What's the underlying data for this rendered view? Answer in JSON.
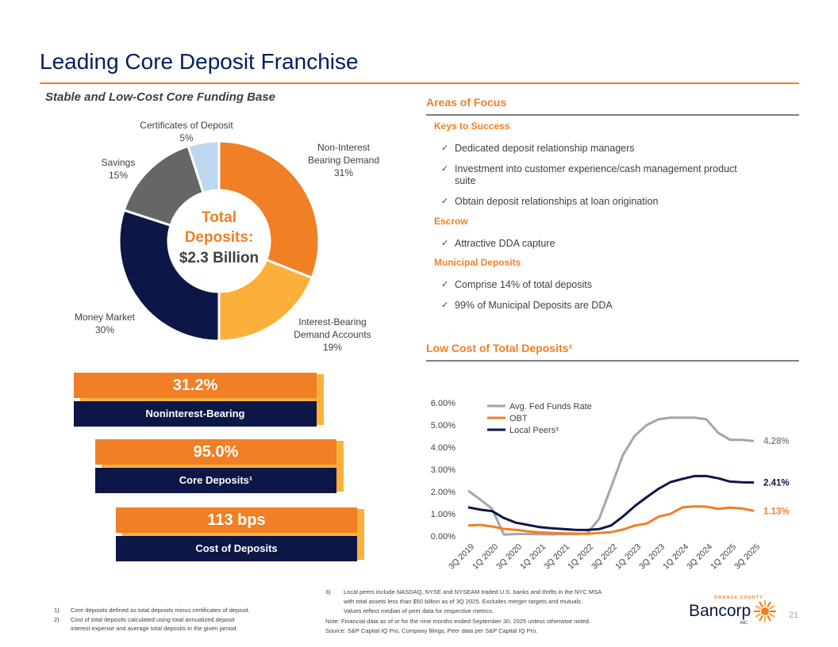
{
  "title": "Leading Core Deposit Franchise",
  "left_subtitle": "Stable and Low-Cost Core Funding Base",
  "donut": {
    "center_line1": "Total",
    "center_line2": "Deposits:",
    "center_line3": "$2.3 Billion",
    "labels": [
      {
        "name": "Non-Interest",
        "name2": "Bearing Demand",
        "pct": "31%"
      },
      {
        "name": "Interest-Bearing",
        "name2": "Demand Accounts",
        "pct": "19%"
      },
      {
        "name": "Money Market",
        "pct": "30%"
      },
      {
        "name": "Savings",
        "pct": "15%"
      },
      {
        "name": "Certificates of Deposit",
        "pct": "5%"
      }
    ]
  },
  "kpis": [
    {
      "value": "31.2%",
      "label": "Noninterest-Bearing"
    },
    {
      "value": "95.0%",
      "label": "Core Deposits¹"
    },
    {
      "value": "113 bps",
      "label": "Cost of Deposits"
    }
  ],
  "focus": {
    "heading": "Areas of Focus",
    "keys_title": "Keys to Success",
    "keys": [
      "Dedicated deposit relationship managers",
      "Investment into customer experience/cash management product",
      "suite",
      "Obtain deposit relationships at loan origination"
    ],
    "escrow_title": "Escrow",
    "escrow": [
      "Attractive DDA capture"
    ],
    "muni_title": "Municipal Deposits",
    "muni": [
      "Comprise 14% of total deposits",
      "99% of Municipal Deposits are DDA"
    ]
  },
  "line_heading": "Low Cost of Total Deposits²",
  "chart_data": [
    {
      "type": "pie",
      "title": "Total Deposits: $2.3 Billion",
      "categories": [
        "Non-Interest Bearing Demand",
        "Interest-Bearing Demand Accounts",
        "Money Market",
        "Savings",
        "Certificates of Deposit"
      ],
      "values": [
        31,
        19,
        30,
        15,
        5
      ],
      "colors": [
        "#f07f25",
        "#fbb03b",
        "#0c1747",
        "#666666",
        "#bdd7ee"
      ]
    },
    {
      "type": "line",
      "title": "Low Cost of Total Deposits²",
      "x": [
        "3Q 2019",
        "4Q 2019",
        "1Q 2020",
        "2Q 2020",
        "3Q 2020",
        "4Q 2020",
        "1Q 2021",
        "2Q 2021",
        "3Q 2021",
        "4Q 2021",
        "1Q 2022",
        "2Q 2022",
        "3Q 2022",
        "4Q 2022",
        "1Q 2023",
        "2Q 2023",
        "3Q 2023",
        "4Q 2023",
        "1Q 2024",
        "2Q 2024",
        "3Q 2024",
        "4Q 2024",
        "1Q 2025",
        "2Q 2025",
        "3Q 2025"
      ],
      "x_tick_labels": [
        "3Q 2019",
        "1Q 2020",
        "3Q 2020",
        "1Q 2021",
        "3Q 2021",
        "1Q 2022",
        "3Q 2022",
        "1Q 2023",
        "3Q 2023",
        "1Q 2024",
        "3Q 2024",
        "1Q 2025",
        "3Q 2025"
      ],
      "y_ticks": [
        "0.00%",
        "1.00%",
        "2.00%",
        "3.00%",
        "4.00%",
        "5.00%",
        "6.00%"
      ],
      "ylim": [
        0,
        6
      ],
      "series": [
        {
          "name": "Avg. Fed Funds Rate",
          "color": "#a6a6a6",
          "end_label": "4.28%",
          "values": [
            2.04,
            1.65,
            1.23,
            0.06,
            0.09,
            0.09,
            0.08,
            0.07,
            0.09,
            0.08,
            0.12,
            0.77,
            2.19,
            3.65,
            4.52,
            5.0,
            5.26,
            5.33,
            5.33,
            5.33,
            5.26,
            4.65,
            4.33,
            4.33,
            4.28
          ]
        },
        {
          "name": "OBT",
          "color": "#f07f25",
          "end_label": "1.13%",
          "values": [
            0.47,
            0.5,
            0.43,
            0.32,
            0.28,
            0.21,
            0.16,
            0.14,
            0.12,
            0.11,
            0.1,
            0.14,
            0.17,
            0.29,
            0.47,
            0.56,
            0.87,
            1.0,
            1.29,
            1.33,
            1.32,
            1.22,
            1.28,
            1.24,
            1.13
          ]
        },
        {
          "name": "Local Peers³",
          "color": "#0c1747",
          "end_label": "2.41%",
          "values": [
            1.29,
            1.19,
            1.12,
            0.81,
            0.6,
            0.5,
            0.4,
            0.35,
            0.31,
            0.28,
            0.27,
            0.31,
            0.47,
            0.88,
            1.35,
            1.75,
            2.13,
            2.43,
            2.57,
            2.7,
            2.7,
            2.6,
            2.45,
            2.42,
            2.41
          ]
        }
      ]
    }
  ],
  "footnotes_left": [
    {
      "num": "1)",
      "text": "Core deposits defined as total deposits minus certificates of deposit."
    },
    {
      "num": "2)",
      "text": "Cost of total deposits calculated using total annualized deposit",
      "text2": "interest expense and average total deposits in the given period."
    }
  ],
  "footnotes_right": {
    "num": "3)",
    "line1": "Local peers include NASDAQ, NYSE and NYSEAM traded U.S. banks and thrifts in the NYC MSA",
    "line2": "with total assets less than $50 billion as of 3Q 2025. Excludes merger targets and mutuals.",
    "line3": "Values reflect median of peer data for respective metrics.",
    "note": "Note: Financial data as of or for the nine months ended September 30, 2025 unless otherwise noted.",
    "source": "Source: S&P Capital IQ Pro, Company filings, Peer data per S&P Capital IQ Pro."
  },
  "logo": {
    "top": "ORANGE COUNTY",
    "main": "Bancorp",
    "sub": "INC."
  },
  "page_number": "21"
}
